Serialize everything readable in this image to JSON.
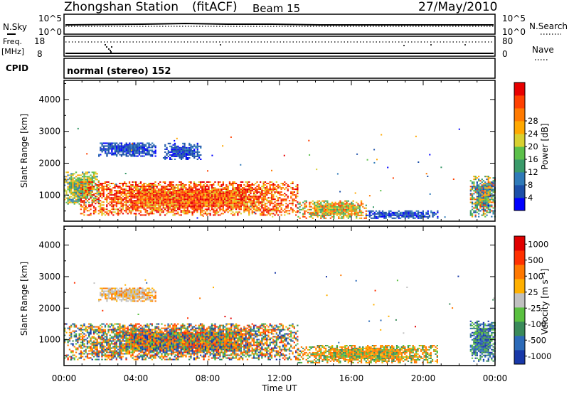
{
  "header": {
    "station": "Zhongshan Station",
    "mode": "(fitACF)",
    "beam": "Beam 15",
    "date": "27/May/2010"
  },
  "panels": {
    "nsky": {
      "label": "N.Sky",
      "right_label": "N.Search",
      "tick_top": "10^5",
      "tick_bottom": "10^0",
      "tick_top_right": "10^5",
      "tick_bottom_right": "10^0"
    },
    "freq": {
      "label_line1": "Freq.",
      "label_line2": "[MHz]",
      "right_label": "Nave",
      "tick_top": "18",
      "tick_bottom": "8",
      "tick_top_right": "80",
      "tick_bottom_right": "0"
    },
    "cpid": {
      "label": "CPID",
      "text": "normal (stereo) 152"
    }
  },
  "chart_data": [
    {
      "type": "heatmap",
      "name": "power-panel",
      "ylabel": "Slant Range [km]",
      "xlabel": "",
      "x_ticks": [
        "00:00",
        "04:00",
        "08:00",
        "12:00",
        "16:00",
        "20:00",
        "00:00"
      ],
      "x_range_hours": [
        0,
        24
      ],
      "y_ticks": [
        1000,
        2000,
        3000,
        4000
      ],
      "ylim": [
        180,
        4600
      ],
      "colorbar": {
        "label": "Power [dB]",
        "ticks": [
          "4",
          "8",
          "12",
          "16",
          "20",
          "24",
          "28"
        ],
        "colors": [
          "#0000ff",
          "#1c4fa8",
          "#2f7ab8",
          "#3a9a6a",
          "#5cc04a",
          "#d8d030",
          "#ffa800",
          "#ff7a00",
          "#ff4000",
          "#e80000"
        ],
        "range": [
          0,
          30
        ]
      },
      "regions": [
        {
          "t": [
            1.9,
            5.1
          ],
          "r": [
            2200,
            2650
          ],
          "v": "low"
        },
        {
          "t": [
            5.5,
            7.6
          ],
          "r": [
            2100,
            2600
          ],
          "v": "low"
        },
        {
          "t": [
            0.0,
            1.9
          ],
          "r": [
            700,
            1700
          ],
          "v": "mid"
        },
        {
          "t": [
            0.9,
            13.0
          ],
          "r": [
            350,
            1400
          ],
          "v": "high"
        },
        {
          "t": [
            13.0,
            16.8
          ],
          "r": [
            250,
            800
          ],
          "v": "mid-high"
        },
        {
          "t": [
            16.8,
            20.8
          ],
          "r": [
            250,
            500
          ],
          "v": "low"
        },
        {
          "t": [
            22.6,
            24.0
          ],
          "r": [
            300,
            1600
          ],
          "v": "mixed"
        }
      ]
    },
    {
      "type": "heatmap",
      "name": "velocity-panel",
      "ylabel": "Slant Range [km]",
      "xlabel": "Time UT",
      "x_ticks": [
        "00:00",
        "04:00",
        "08:00",
        "12:00",
        "16:00",
        "20:00",
        "00:00"
      ],
      "x_range_hours": [
        0,
        24
      ],
      "y_ticks": [
        1000,
        2000,
        3000,
        4000
      ],
      "ylim": [
        180,
        4600
      ],
      "colorbar": {
        "label": "Velocity [m s⁻¹]",
        "ticks": [
          "1000",
          "500",
          "100",
          "25",
          "-25",
          "-100",
          "-500",
          "-1000"
        ],
        "colors": [
          "#1838a8",
          "#2c6ab8",
          "#3a8a5a",
          "#5ac040",
          "#c0c0c0",
          "#ffb000",
          "#ff7800",
          "#ff3000",
          "#e00000"
        ],
        "range": [
          -1000,
          1000
        ]
      },
      "regions": [
        {
          "t": [
            1.9,
            5.1
          ],
          "r": [
            2200,
            2650
          ],
          "v": "grey-orange"
        },
        {
          "t": [
            0.0,
            13.0
          ],
          "r": [
            350,
            1500
          ],
          "v": "blue-green-orange"
        },
        {
          "t": [
            13.0,
            20.8
          ],
          "r": [
            250,
            800
          ],
          "v": "green-orange"
        },
        {
          "t": [
            22.6,
            24.0
          ],
          "r": [
            300,
            1600
          ],
          "v": "blue-green"
        }
      ]
    }
  ]
}
